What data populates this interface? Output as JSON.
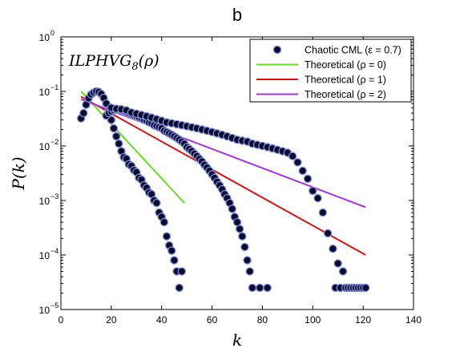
{
  "chart_data": {
    "type": "scatter",
    "title": "b",
    "xlabel": "k",
    "ylabel": "P(k)",
    "annotation": "ILPHVG8(ρ)",
    "annotation_main": "ILPHVG",
    "annotation_sub": "8",
    "annotation_arg": "(ρ)",
    "xlim": [
      0,
      140
    ],
    "ylim": [
      1e-05,
      1
    ],
    "y_scale": "log",
    "xticks": [
      0,
      20,
      40,
      60,
      80,
      100,
      120,
      140
    ],
    "xtick_labels": [
      "0",
      "20",
      "40",
      "60",
      "80",
      "100",
      "120",
      "140"
    ],
    "yticks": [
      1e-05,
      0.0001,
      0.001,
      0.01,
      0.1,
      1
    ],
    "ytick_bases": [
      "10",
      "10",
      "10",
      "10",
      "10",
      "10"
    ],
    "ytick_exps": [
      "−5",
      "−4",
      "−3",
      "−2",
      "−1",
      "0"
    ],
    "grid": false,
    "legend_position": "top-right",
    "series": [
      {
        "name": "Chaotic CML (ε = 0.7)",
        "kind": "scatter",
        "color": "#0b0b2e",
        "edge_color": "#7f8fd8",
        "points": [
          [
            8,
            0.032
          ],
          [
            9,
            0.04
          ],
          [
            10,
            0.057
          ],
          [
            11,
            0.075
          ],
          [
            12,
            0.088
          ],
          [
            13,
            0.095
          ],
          [
            14,
            0.1
          ],
          [
            15,
            0.098
          ],
          [
            16,
            0.09
          ],
          [
            17,
            0.076
          ],
          [
            18,
            0.06
          ],
          [
            19,
            0.044
          ],
          [
            20,
            0.03
          ],
          [
            21,
            0.021
          ],
          [
            22,
            0.015
          ],
          [
            23,
            0.011
          ],
          [
            24,
            0.008
          ],
          [
            25,
            0.0062
          ],
          [
            26,
            0.0058
          ],
          [
            27,
            0.0046
          ],
          [
            28,
            0.0043
          ],
          [
            29,
            0.0036
          ],
          [
            30,
            0.0033
          ],
          [
            31,
            0.0026
          ],
          [
            32,
            0.0024
          ],
          [
            33,
            0.0019
          ],
          [
            34,
            0.0017
          ],
          [
            35,
            0.0014
          ],
          [
            36,
            0.0013
          ],
          [
            37,
            0.001
          ],
          [
            38,
            0.0009
          ],
          [
            39,
            0.0006
          ],
          [
            40,
            0.0005
          ],
          [
            41,
            0.0004
          ],
          [
            42,
            0.00022
          ],
          [
            43,
            0.00015
          ],
          [
            44,
            0.00012
          ],
          [
            45,
            8e-05
          ],
          [
            46,
            5e-05
          ],
          [
            48,
            5e-05
          ],
          [
            47,
            2.5e-05
          ],
          [
            18,
            0.036
          ],
          [
            19,
            0.04
          ],
          [
            20,
            0.043
          ],
          [
            21,
            0.045
          ],
          [
            22,
            0.046
          ],
          [
            23,
            0.047
          ],
          [
            24,
            0.046
          ],
          [
            25,
            0.044
          ],
          [
            26,
            0.042
          ],
          [
            27,
            0.04
          ],
          [
            28,
            0.038
          ],
          [
            29,
            0.036
          ],
          [
            30,
            0.035
          ],
          [
            31,
            0.033
          ],
          [
            32,
            0.032
          ],
          [
            33,
            0.03
          ],
          [
            34,
            0.029
          ],
          [
            35,
            0.027
          ],
          [
            36,
            0.026
          ],
          [
            37,
            0.024
          ],
          [
            38,
            0.023
          ],
          [
            39,
            0.022
          ],
          [
            40,
            0.021
          ],
          [
            41,
            0.019
          ],
          [
            42,
            0.018
          ],
          [
            43,
            0.017
          ],
          [
            44,
            0.016
          ],
          [
            45,
            0.015
          ],
          [
            46,
            0.014
          ],
          [
            47,
            0.013
          ],
          [
            48,
            0.012
          ],
          [
            49,
            0.011
          ],
          [
            50,
            0.0095
          ],
          [
            51,
            0.0088
          ],
          [
            52,
            0.008
          ],
          [
            53,
            0.0072
          ],
          [
            54,
            0.0065
          ],
          [
            55,
            0.0058
          ],
          [
            56,
            0.0052
          ],
          [
            57,
            0.0045
          ],
          [
            58,
            0.004
          ],
          [
            59,
            0.0035
          ],
          [
            60,
            0.003
          ],
          [
            61,
            0.0026
          ],
          [
            62,
            0.0022
          ],
          [
            63,
            0.0019
          ],
          [
            64,
            0.0016
          ],
          [
            65,
            0.0013
          ],
          [
            66,
            0.0011
          ],
          [
            67,
            0.0009
          ],
          [
            68,
            0.0007
          ],
          [
            69,
            0.0005
          ],
          [
            70,
            0.0004
          ],
          [
            71,
            0.0003
          ],
          [
            72,
            0.00022
          ],
          [
            73,
            0.00014
          ],
          [
            74,
            8e-05
          ],
          [
            75,
            5e-05
          ],
          [
            76,
            2.5e-05
          ],
          [
            79,
            2.5e-05
          ],
          [
            82,
            2.5e-05
          ],
          [
            20,
            0.05
          ],
          [
            22,
            0.048
          ],
          [
            24,
            0.047
          ],
          [
            26,
            0.045
          ],
          [
            28,
            0.041
          ],
          [
            30,
            0.039
          ],
          [
            32,
            0.037
          ],
          [
            34,
            0.035
          ],
          [
            36,
            0.033
          ],
          [
            38,
            0.031
          ],
          [
            40,
            0.029
          ],
          [
            42,
            0.027
          ],
          [
            44,
            0.026
          ],
          [
            46,
            0.025
          ],
          [
            48,
            0.024
          ],
          [
            50,
            0.023
          ],
          [
            52,
            0.022
          ],
          [
            54,
            0.021
          ],
          [
            56,
            0.02
          ],
          [
            58,
            0.019
          ],
          [
            60,
            0.018
          ],
          [
            62,
            0.017
          ],
          [
            64,
            0.016
          ],
          [
            66,
            0.015
          ],
          [
            68,
            0.014
          ],
          [
            70,
            0.013
          ],
          [
            72,
            0.0125
          ],
          [
            74,
            0.012
          ],
          [
            76,
            0.011
          ],
          [
            78,
            0.0105
          ],
          [
            80,
            0.01
          ],
          [
            82,
            0.0095
          ],
          [
            84,
            0.009
          ],
          [
            86,
            0.0085
          ],
          [
            88,
            0.008
          ],
          [
            90,
            0.0075
          ],
          [
            92,
            0.0065
          ],
          [
            94,
            0.005
          ],
          [
            96,
            0.0035
          ],
          [
            98,
            0.0025
          ],
          [
            100,
            0.0015
          ],
          [
            102,
            0.0011
          ],
          [
            104,
            0.0006
          ],
          [
            106,
            0.00025
          ],
          [
            108,
            0.00013
          ],
          [
            110,
            7e-05
          ],
          [
            112,
            5e-05
          ],
          [
            109,
            2.5e-05
          ],
          [
            111,
            2.5e-05
          ],
          [
            113,
            2.5e-05
          ],
          [
            114,
            2.5e-05
          ],
          [
            115,
            2.5e-05
          ],
          [
            116,
            2.5e-05
          ],
          [
            117,
            2.5e-05
          ],
          [
            118,
            2.5e-05
          ],
          [
            119,
            2.5e-05
          ],
          [
            120,
            2.5e-05
          ],
          [
            121,
            2.5e-05
          ]
        ]
      },
      {
        "name": "Theoretical (ρ = 0)",
        "kind": "line",
        "color": "#66dd22",
        "x": [
          8,
          49
        ],
        "y": [
          0.1,
          0.0009
        ]
      },
      {
        "name": "Theoretical (ρ = 1)",
        "kind": "line",
        "color": "#e01010",
        "x": [
          8,
          121
        ],
        "y": [
          0.08,
          0.0001
        ]
      },
      {
        "name": "Theoretical (ρ = 2)",
        "kind": "line",
        "color": "#a832e6",
        "x": [
          8,
          121
        ],
        "y": [
          0.072,
          0.00075
        ]
      }
    ]
  }
}
